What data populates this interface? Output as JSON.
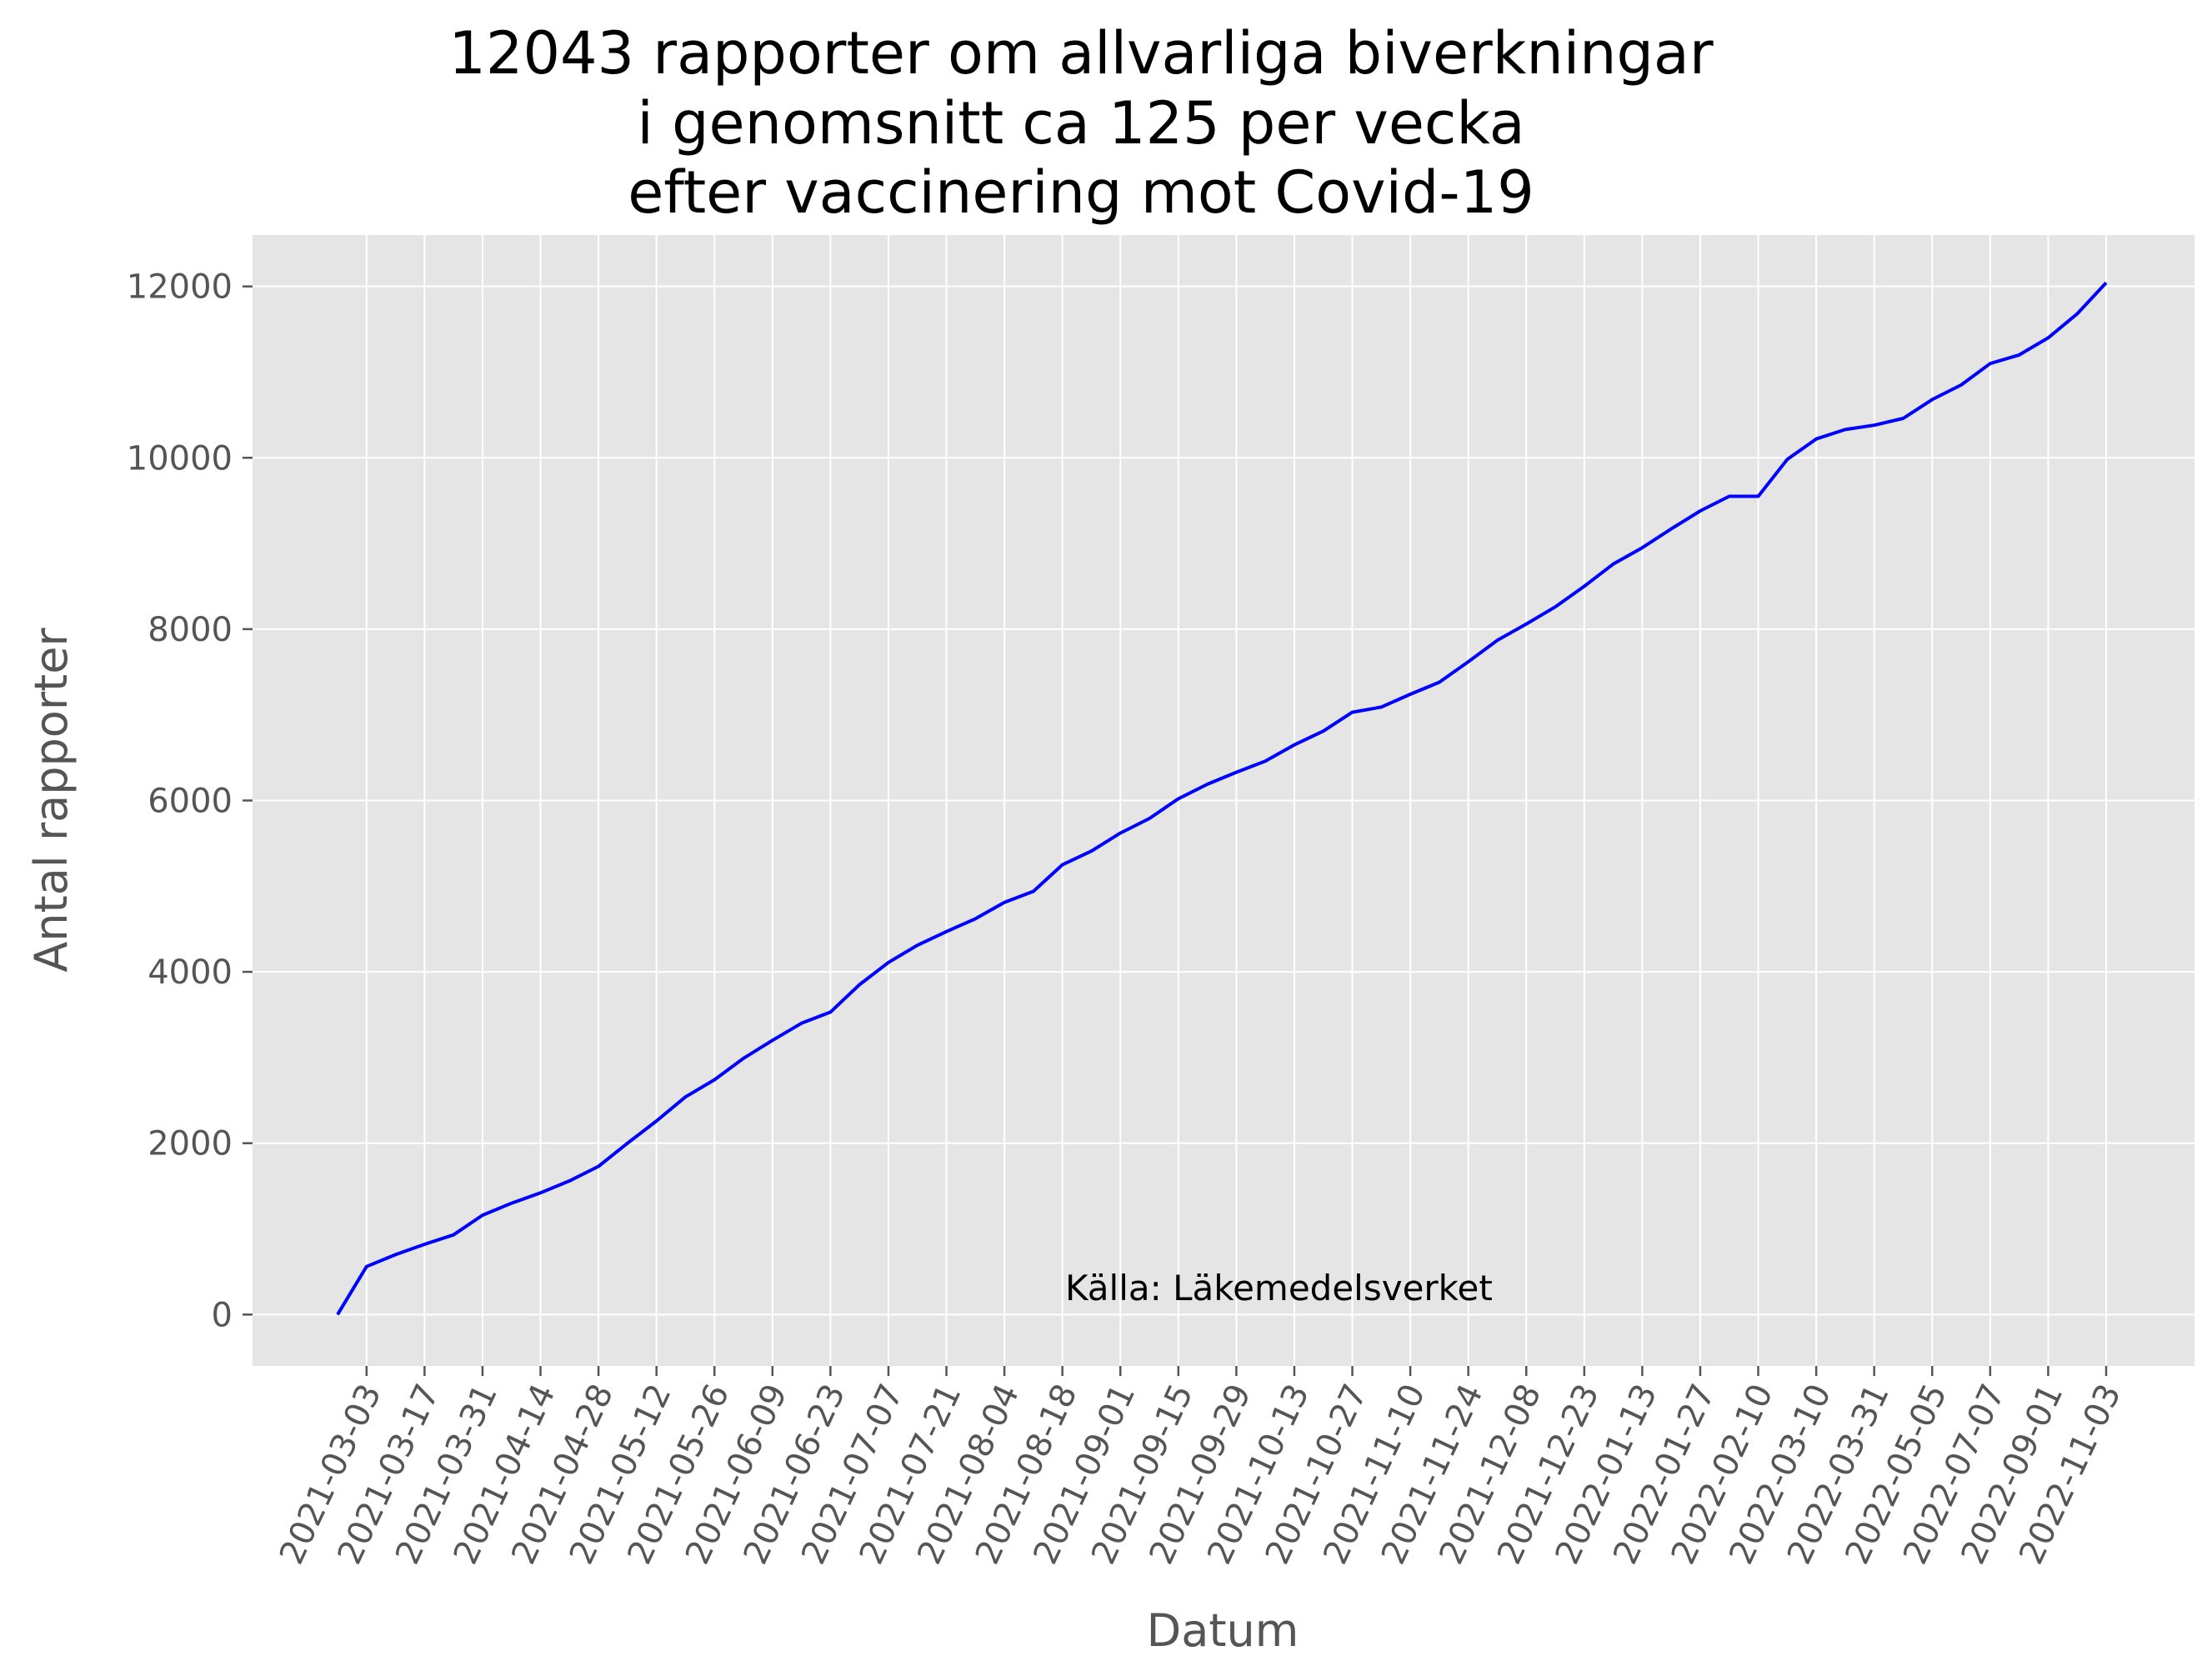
{
  "chart_data": {
    "type": "line",
    "title_lines": [
      "12043 rapporter om allvarliga biverkningar",
      "i genomsnitt ca 125 per vecka",
      "efter vaccinering mot Covid-19"
    ],
    "xlabel": "Datum",
    "ylabel": "Antal rapporter",
    "annotation": "Källa: Läkemedelsverket",
    "grid": true,
    "background_color": "#e5e5e5",
    "grid_color": "#ffffff",
    "line_color": "#0000ff",
    "ylim": [
      -600,
      12600
    ],
    "yticks": [
      0,
      2000,
      4000,
      6000,
      8000,
      10000,
      12000
    ],
    "xticks": [
      "2021-03-03",
      "2021-03-17",
      "2021-03-31",
      "2021-04-14",
      "2021-04-28",
      "2021-05-12",
      "2021-05-26",
      "2021-06-09",
      "2021-06-23",
      "2021-07-07",
      "2021-07-21",
      "2021-08-04",
      "2021-08-18",
      "2021-09-01",
      "2021-09-15",
      "2021-09-29",
      "2021-10-13",
      "2021-10-27",
      "2021-11-10",
      "2021-11-24",
      "2021-12-08",
      "2021-12-23",
      "2022-01-13",
      "2022-01-27",
      "2022-02-10",
      "2022-03-10",
      "2022-03-31",
      "2022-05-05",
      "2022-07-07",
      "2022-09-01",
      "2022-11-03"
    ],
    "series": [
      {
        "values": [
          0,
          560,
          700,
          820,
          930,
          1160,
          1300,
          1420,
          1560,
          1730,
          2000,
          2260,
          2540,
          2740,
          2990,
          3200,
          3400,
          3530,
          3850,
          4110,
          4310,
          4470,
          4620,
          4810,
          4940,
          5250,
          5410,
          5620,
          5790,
          6020,
          6190,
          6330,
          6460,
          6650,
          6810,
          7030,
          7090,
          7240,
          7380,
          7620,
          7870,
          8060,
          8260,
          8500,
          8760,
          8950,
          9170,
          9380,
          9550,
          9550,
          9980,
          10220,
          10330,
          10380,
          10460,
          10680,
          10850,
          11100,
          11200,
          11400,
          11680,
          12043
        ]
      }
    ]
  }
}
